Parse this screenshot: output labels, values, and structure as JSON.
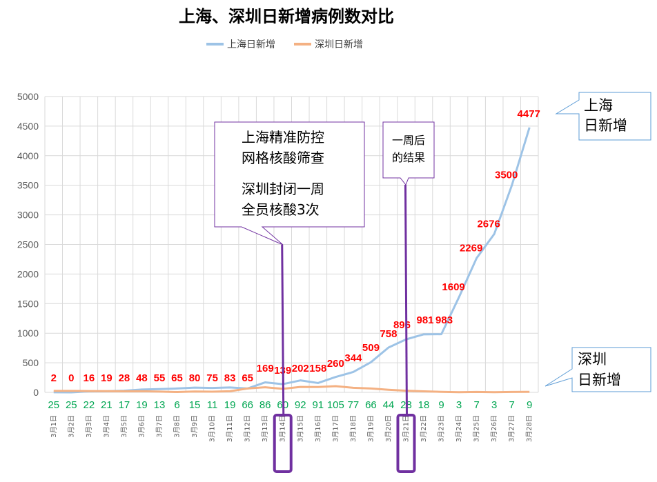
{
  "chart_data": {
    "type": "line",
    "title": "上海、深圳日新增病例数对比",
    "categories": [
      "3月1日",
      "3月2日",
      "3月3日",
      "3月4日",
      "3月5日",
      "3月6日",
      "3月7日",
      "3月8日",
      "3月9日",
      "3月10日",
      "3月11日",
      "3月12日",
      "3月13日",
      "3月14日",
      "3月15日",
      "3月16日",
      "3月17日",
      "3月18日",
      "3月19日",
      "3月20日",
      "3月21日",
      "3月22日",
      "3月23日",
      "3月24日",
      "3月25日",
      "3月26日",
      "3月27日",
      "3月28日"
    ],
    "series": [
      {
        "name": "上海日新增",
        "color": "#9dc3e6",
        "label_color": "#ff0000",
        "values": [
          2,
          0,
          16,
          19,
          28,
          48,
          55,
          65,
          80,
          75,
          83,
          65,
          169,
          139,
          202,
          158,
          260,
          344,
          509,
          758,
          896,
          981,
          983,
          1609,
          2269,
          2676,
          3500,
          4477
        ]
      },
      {
        "name": "深圳日新增",
        "color": "#f4b183",
        "label_color": "#00a651",
        "values": [
          25,
          25,
          22,
          21,
          17,
          19,
          13,
          6,
          15,
          11,
          19,
          66,
          86,
          60,
          92,
          91,
          105,
          77,
          66,
          44,
          28,
          18,
          9,
          3,
          7,
          3,
          7,
          9
        ]
      }
    ],
    "yticks": [
      "0",
      "500",
      "1000",
      "1500",
      "2000",
      "2500",
      "3000",
      "3500",
      "4000",
      "4500",
      "5000"
    ],
    "ylim": [
      0,
      5000
    ],
    "grid": true,
    "legend": "top-center",
    "annotations": {
      "callout1": [
        "上海精准防控",
        "网格核酸筛查",
        "深圳封闭一周",
        "全员核酸3次"
      ],
      "callout2": [
        "一周后",
        "的结果"
      ],
      "shanghai_tag": [
        "上海",
        "日新增"
      ],
      "shenzhen_tag": [
        "深圳",
        "日新增"
      ],
      "highlight_days": [
        "3月14日",
        "3月21日"
      ],
      "highlight_color": "#7030a0"
    }
  }
}
